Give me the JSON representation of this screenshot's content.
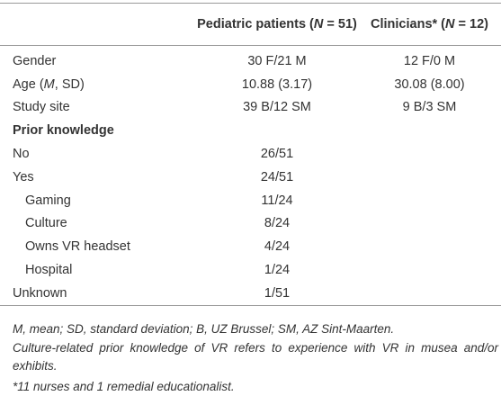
{
  "table": {
    "header": [
      [
        "Pediatric patients (",
        "N",
        " = 51)"
      ],
      [
        "Clinicians* (",
        "N",
        " = 12)"
      ]
    ],
    "rows": [
      {
        "label": "Gender",
        "values": [
          "30 F/21 M",
          "12 F/0 M"
        ]
      },
      {
        "label": [
          "Age (",
          "M",
          ", SD)"
        ],
        "values": [
          "10.88 (3.17)",
          "30.08 (8.00)"
        ]
      },
      {
        "label": "Study site",
        "values": [
          "39 B/12 SM",
          "9 B/3 SM"
        ]
      },
      {
        "label": "Prior knowledge",
        "values": []
      },
      {
        "label": "No",
        "values": [
          "26/51"
        ]
      },
      {
        "label": "Yes",
        "values": [
          "24/51"
        ]
      },
      {
        "label": "Gaming",
        "values": [
          "11/24"
        ]
      },
      {
        "label": "Culture",
        "values": [
          "8/24"
        ]
      },
      {
        "label": "Owns VR headset",
        "values": [
          "4/24"
        ]
      },
      {
        "label": "Hospital",
        "values": [
          "1/24"
        ]
      },
      {
        "label": "Unknown",
        "values": [
          "1/51"
        ]
      }
    ]
  },
  "footnotes": [
    "M, mean; SD, standard deviation; B, UZ Brussel; SM, AZ Sint-Maarten.",
    "Culture-related prior knowledge of VR refers to experience with VR in musea and/or exhibits.",
    "*11 nurses and 1 remedial educationalist."
  ]
}
